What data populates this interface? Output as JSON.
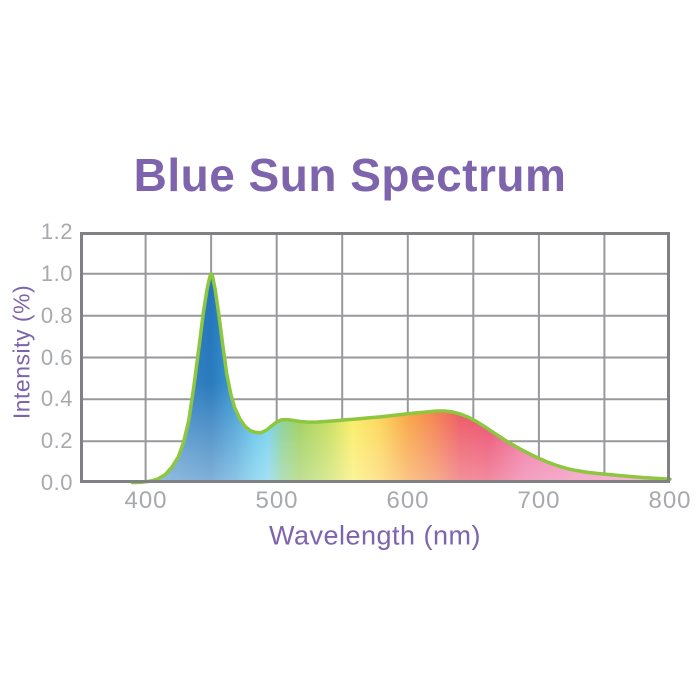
{
  "title": "Blue Sun Spectrum",
  "colors": {
    "title_purple": "#7d64ad",
    "tick_gray": "#a7a9ac",
    "grid_gray": "#97999c",
    "border_gray": "#7f8184",
    "curve_stroke_green": "#8dc63f",
    "background": "#ffffff"
  },
  "chart_data": {
    "type": "area",
    "title": "Blue Sun Spectrum",
    "xlabel": "Wavelength (nm)",
    "ylabel": "Intensity (%)",
    "xlim": [
      350,
      800
    ],
    "ylim": [
      0,
      1.2
    ],
    "x_grid_step_nm": 50,
    "y_grid_step": 0.2,
    "grid": "on",
    "legend_position": "none",
    "x_tick_labels": [
      "400",
      "500",
      "600",
      "700",
      "800"
    ],
    "x_tick_values": [
      400,
      500,
      600,
      700,
      800
    ],
    "y_tick_labels": [
      "0.0",
      "0.2",
      "0.4",
      "0.6",
      "0.8",
      "1.0",
      "1.2"
    ],
    "y_tick_values": [
      0,
      0.2,
      0.4,
      0.6,
      0.8,
      1.0,
      1.2
    ],
    "peak": {
      "wavelength_nm": 450,
      "intensity": 1.0
    },
    "secondary_plateau": {
      "range_nm": [
        500,
        650
      ],
      "intensity_approx": 0.3,
      "max": 0.34
    },
    "points": [
      [
        390,
        0.002
      ],
      [
        397,
        0.004
      ],
      [
        403,
        0.008
      ],
      [
        409,
        0.018
      ],
      [
        415,
        0.04
      ],
      [
        420,
        0.075
      ],
      [
        425,
        0.125
      ],
      [
        429,
        0.195
      ],
      [
        433,
        0.3
      ],
      [
        437,
        0.47
      ],
      [
        441,
        0.66
      ],
      [
        444,
        0.81
      ],
      [
        447,
        0.93
      ],
      [
        449,
        0.985
      ],
      [
        450,
        1.0
      ],
      [
        451,
        0.99
      ],
      [
        453,
        0.93
      ],
      [
        456,
        0.8
      ],
      [
        459,
        0.655
      ],
      [
        462,
        0.52
      ],
      [
        465,
        0.425
      ],
      [
        468,
        0.36
      ],
      [
        472,
        0.305
      ],
      [
        476,
        0.27
      ],
      [
        480,
        0.25
      ],
      [
        484,
        0.242
      ],
      [
        488,
        0.24
      ],
      [
        492,
        0.252
      ],
      [
        496,
        0.272
      ],
      [
        500,
        0.292
      ],
      [
        504,
        0.302
      ],
      [
        508,
        0.303
      ],
      [
        513,
        0.299
      ],
      [
        518,
        0.294
      ],
      [
        524,
        0.291
      ],
      [
        530,
        0.291
      ],
      [
        537,
        0.294
      ],
      [
        545,
        0.298
      ],
      [
        553,
        0.302
      ],
      [
        561,
        0.306
      ],
      [
        570,
        0.311
      ],
      [
        580,
        0.317
      ],
      [
        590,
        0.324
      ],
      [
        600,
        0.331
      ],
      [
        608,
        0.336
      ],
      [
        616,
        0.341
      ],
      [
        622,
        0.344
      ],
      [
        628,
        0.344
      ],
      [
        634,
        0.34
      ],
      [
        640,
        0.33
      ],
      [
        646,
        0.315
      ],
      [
        652,
        0.295
      ],
      [
        658,
        0.272
      ],
      [
        664,
        0.247
      ],
      [
        670,
        0.222
      ],
      [
        676,
        0.198
      ],
      [
        682,
        0.176
      ],
      [
        688,
        0.155
      ],
      [
        694,
        0.136
      ],
      [
        700,
        0.118
      ],
      [
        707,
        0.099
      ],
      [
        714,
        0.083
      ],
      [
        721,
        0.07
      ],
      [
        728,
        0.06
      ],
      [
        736,
        0.052
      ],
      [
        744,
        0.046
      ],
      [
        752,
        0.041
      ],
      [
        761,
        0.036
      ],
      [
        770,
        0.031
      ],
      [
        780,
        0.026
      ],
      [
        790,
        0.022
      ],
      [
        800,
        0.018
      ]
    ],
    "fill_gradient_stops": [
      [
        390,
        "#5093cf"
      ],
      [
        428,
        "#2a7cc0"
      ],
      [
        450,
        "#1e72b9"
      ],
      [
        468,
        "#2f93d0"
      ],
      [
        483,
        "#47bae6"
      ],
      [
        493,
        "#59c8ec"
      ],
      [
        505,
        "#74c77c"
      ],
      [
        518,
        "#8cc63e"
      ],
      [
        540,
        "#bcd83f"
      ],
      [
        558,
        "#f9ea48"
      ],
      [
        578,
        "#fbce38"
      ],
      [
        600,
        "#f79421"
      ],
      [
        622,
        "#f2672f"
      ],
      [
        640,
        "#ea3a47"
      ],
      [
        662,
        "#e82d55"
      ],
      [
        690,
        "#ec5890"
      ],
      [
        730,
        "#ef70a6"
      ],
      [
        800,
        "#f287bb"
      ]
    ]
  }
}
